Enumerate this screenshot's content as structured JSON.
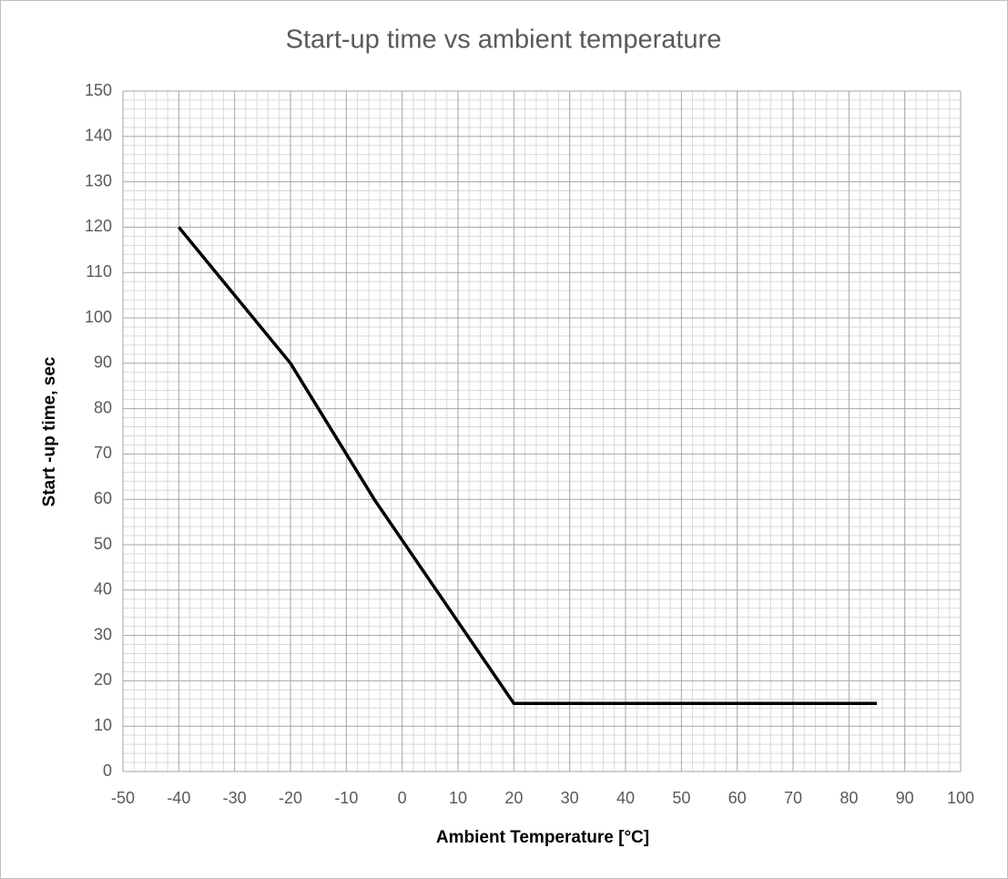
{
  "chart_data": {
    "type": "line",
    "title": "Start-up time vs ambient temperature",
    "x_label": "Ambient Temperature [°C]",
    "y_label": "Start -up time, sec",
    "x": [
      -40,
      -20,
      -5,
      20,
      85
    ],
    "series": [
      {
        "name": "Start-up time",
        "color": "#000000",
        "values": [
          120,
          90,
          60,
          15,
          15
        ]
      }
    ],
    "xlim": [
      -50,
      100
    ],
    "xticks": [
      -50,
      -40,
      -30,
      -20,
      -10,
      0,
      10,
      20,
      30,
      40,
      50,
      60,
      70,
      80,
      90,
      100
    ],
    "ylim": [
      0,
      150
    ],
    "yticks": [
      0,
      10,
      20,
      30,
      40,
      50,
      60,
      70,
      80,
      90,
      100,
      110,
      120,
      130,
      140,
      150
    ],
    "grid": true,
    "minor_grid": true
  }
}
